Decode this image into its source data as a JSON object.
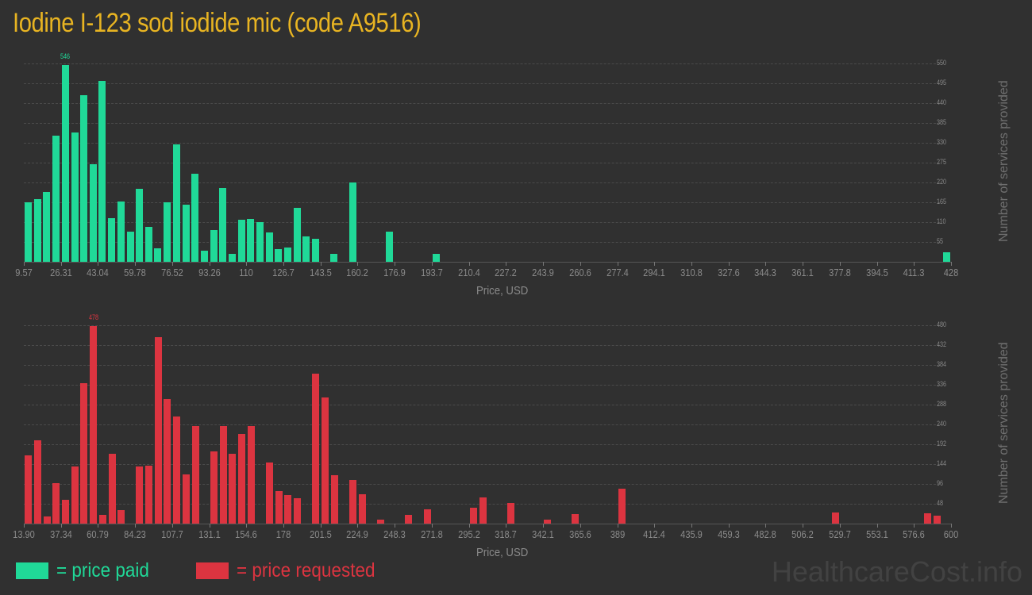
{
  "title": "Iodine I-123 sod iodide mic (code A9516)",
  "legend": {
    "paid_label": "= price paid",
    "requested_label": "= price requested",
    "paid_color": "#20d998",
    "requested_color": "#dc3440"
  },
  "brand": "HealthcareCost.info",
  "chart_data": [
    {
      "type": "bar",
      "title": "Price paid",
      "xlabel": "Price, USD",
      "ylabel": "Number of services provided",
      "color": "#20d998",
      "ylim": [
        0,
        550
      ],
      "yticks": [
        55,
        110,
        165,
        220,
        275,
        330,
        385,
        440,
        495,
        550
      ],
      "xtick_labels": [
        "9.57",
        "26.31",
        "43.04",
        "59.78",
        "76.52",
        "93.26",
        "110",
        "126.7",
        "143.5",
        "160.2",
        "176.9",
        "193.7",
        "210.4",
        "227.2",
        "243.9",
        "260.6",
        "277.4",
        "294.1",
        "310.8",
        "327.6",
        "344.3",
        "361.1",
        "377.8",
        "394.5",
        "411.3",
        "428"
      ],
      "xlim": [
        9.57,
        428
      ],
      "peak_label": "546",
      "grid": true,
      "bars": [
        {
          "x": 11.6,
          "value": 165
        },
        {
          "x": 15.8,
          "value": 174
        },
        {
          "x": 19.9,
          "value": 194
        },
        {
          "x": 24.1,
          "value": 350
        },
        {
          "x": 28.3,
          "value": 546
        },
        {
          "x": 32.5,
          "value": 359
        },
        {
          "x": 36.7,
          "value": 462
        },
        {
          "x": 40.9,
          "value": 271
        },
        {
          "x": 45.0,
          "value": 502
        },
        {
          "x": 49.2,
          "value": 121
        },
        {
          "x": 53.4,
          "value": 167
        },
        {
          "x": 57.6,
          "value": 84
        },
        {
          "x": 61.8,
          "value": 202
        },
        {
          "x": 66.0,
          "value": 97
        },
        {
          "x": 70.1,
          "value": 37
        },
        {
          "x": 74.3,
          "value": 165
        },
        {
          "x": 78.5,
          "value": 326
        },
        {
          "x": 82.7,
          "value": 158
        },
        {
          "x": 86.9,
          "value": 244
        },
        {
          "x": 91.1,
          "value": 31
        },
        {
          "x": 95.2,
          "value": 88
        },
        {
          "x": 99.4,
          "value": 205
        },
        {
          "x": 103.6,
          "value": 22
        },
        {
          "x": 107.8,
          "value": 117
        },
        {
          "x": 112.0,
          "value": 119
        },
        {
          "x": 116.2,
          "value": 110
        },
        {
          "x": 120.3,
          "value": 81
        },
        {
          "x": 124.5,
          "value": 35
        },
        {
          "x": 128.7,
          "value": 40
        },
        {
          "x": 132.9,
          "value": 150
        },
        {
          "x": 137.1,
          "value": 70
        },
        {
          "x": 141.2,
          "value": 64
        },
        {
          "x": 149.6,
          "value": 22
        },
        {
          "x": 157.9,
          "value": 220
        },
        {
          "x": 174.7,
          "value": 84
        },
        {
          "x": 195.6,
          "value": 22
        },
        {
          "x": 425.9,
          "value": 26
        }
      ]
    },
    {
      "type": "bar",
      "title": "Price requested",
      "xlabel": "Price, USD",
      "ylabel": "Number of services provided",
      "color": "#dc3440",
      "ylim": [
        0,
        480
      ],
      "yticks": [
        48,
        96,
        144,
        192,
        240,
        288,
        336,
        384,
        432,
        480
      ],
      "xtick_labels": [
        "13.90",
        "37.34",
        "60.79",
        "84.23",
        "107.7",
        "131.1",
        "154.6",
        "178",
        "201.5",
        "224.9",
        "248.3",
        "271.8",
        "295.2",
        "318.7",
        "342.1",
        "365.6",
        "389",
        "412.4",
        "435.9",
        "459.3",
        "482.8",
        "506.2",
        "529.7",
        "553.1",
        "576.6",
        "600"
      ],
      "xlim": [
        13.9,
        600
      ],
      "peak_label": "478",
      "grid": true,
      "bars": [
        {
          "x": 16.8,
          "value": 165
        },
        {
          "x": 22.7,
          "value": 202
        },
        {
          "x": 28.6,
          "value": 17
        },
        {
          "x": 34.4,
          "value": 98
        },
        {
          "x": 40.3,
          "value": 58
        },
        {
          "x": 46.1,
          "value": 138
        },
        {
          "x": 52.0,
          "value": 340
        },
        {
          "x": 57.9,
          "value": 478
        },
        {
          "x": 63.7,
          "value": 21
        },
        {
          "x": 69.6,
          "value": 169
        },
        {
          "x": 75.4,
          "value": 33
        },
        {
          "x": 87.1,
          "value": 138
        },
        {
          "x": 93.0,
          "value": 140
        },
        {
          "x": 98.9,
          "value": 451
        },
        {
          "x": 104.7,
          "value": 301
        },
        {
          "x": 110.6,
          "value": 259
        },
        {
          "x": 116.5,
          "value": 119
        },
        {
          "x": 122.3,
          "value": 236
        },
        {
          "x": 134.0,
          "value": 175
        },
        {
          "x": 139.9,
          "value": 236
        },
        {
          "x": 145.8,
          "value": 169
        },
        {
          "x": 151.6,
          "value": 217
        },
        {
          "x": 157.5,
          "value": 236
        },
        {
          "x": 169.2,
          "value": 148
        },
        {
          "x": 175.1,
          "value": 79
        },
        {
          "x": 180.9,
          "value": 69
        },
        {
          "x": 186.8,
          "value": 61
        },
        {
          "x": 198.5,
          "value": 363
        },
        {
          "x": 204.4,
          "value": 305
        },
        {
          "x": 210.2,
          "value": 117
        },
        {
          "x": 222.0,
          "value": 106
        },
        {
          "x": 227.8,
          "value": 71
        },
        {
          "x": 239.5,
          "value": 10
        },
        {
          "x": 257.1,
          "value": 21
        },
        {
          "x": 268.9,
          "value": 35
        },
        {
          "x": 298.2,
          "value": 38
        },
        {
          "x": 304.0,
          "value": 63
        },
        {
          "x": 321.6,
          "value": 50
        },
        {
          "x": 345.0,
          "value": 10
        },
        {
          "x": 362.6,
          "value": 23
        },
        {
          "x": 392.0,
          "value": 84
        },
        {
          "x": 526.8,
          "value": 27
        },
        {
          "x": 585.4,
          "value": 25
        },
        {
          "x": 591.2,
          "value": 19
        }
      ]
    }
  ]
}
